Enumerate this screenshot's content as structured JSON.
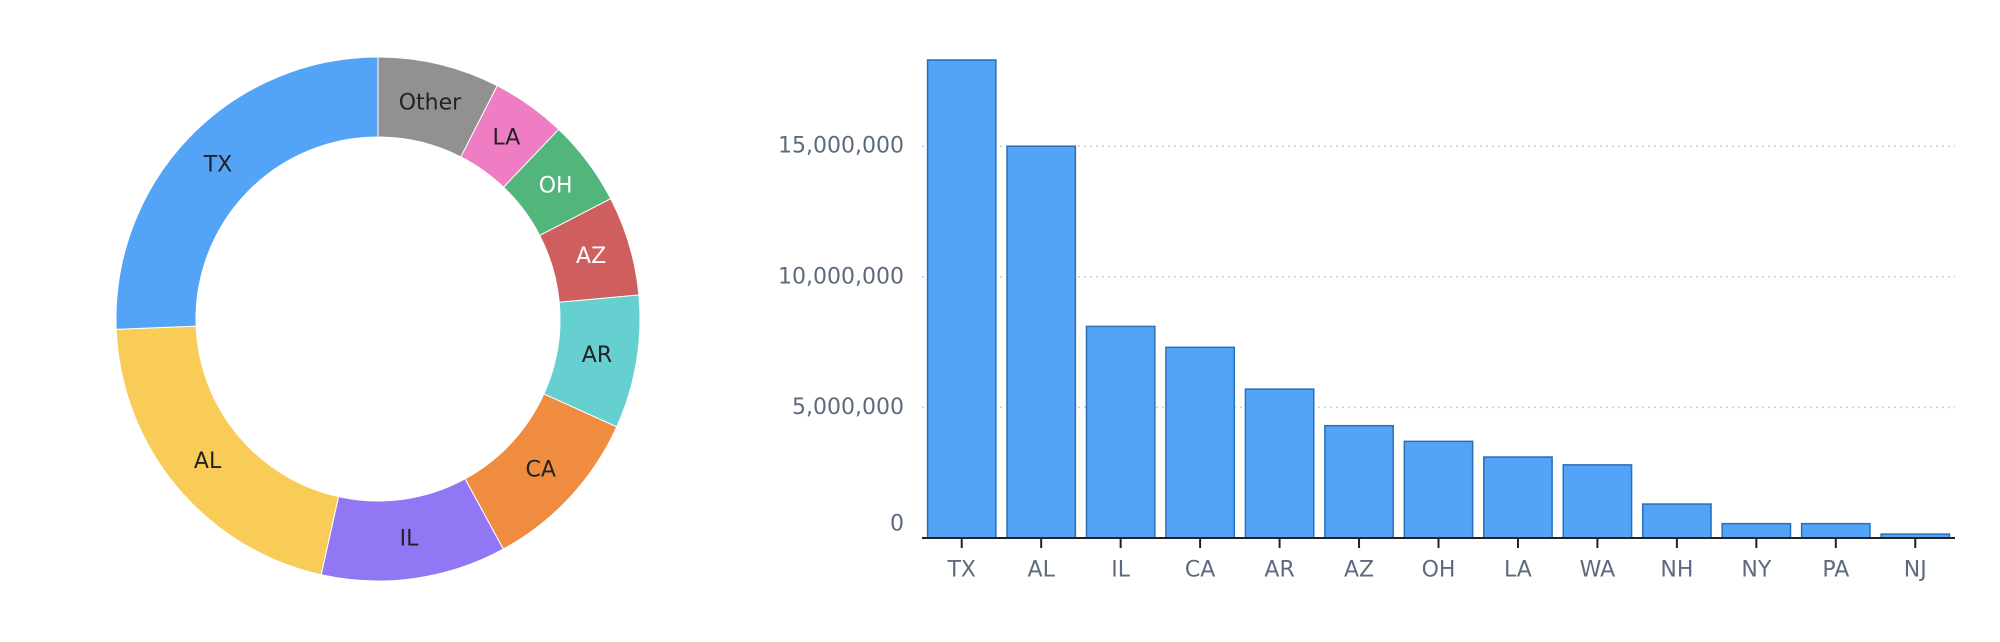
{
  "chart_data": [
    {
      "type": "pie",
      "variant": "donut",
      "slices": [
        {
          "label": "Other",
          "value": 2.7,
          "color": "#919191",
          "text_color": "#222222"
        },
        {
          "label": "LA",
          "value": 1.65,
          "color": "#ee7dc3",
          "text_color": "#222222"
        },
        {
          "label": "OH",
          "value": 1.9,
          "color": "#52b57c",
          "text_color": "#ffffff"
        },
        {
          "label": "AZ",
          "value": 2.2,
          "color": "#cf5e5e",
          "text_color": "#ffffff"
        },
        {
          "label": "AR",
          "value": 2.95,
          "color": "#66d0d0",
          "text_color": "#222222"
        },
        {
          "label": "CA",
          "value": 3.7,
          "color": "#ef8c3f",
          "text_color": "#222222"
        },
        {
          "label": "IL",
          "value": 4.1,
          "color": "#9177f3",
          "text_color": "#222222"
        },
        {
          "label": "AL",
          "value": 7.5,
          "color": "#f8cc57",
          "text_color": "#222222"
        },
        {
          "label": "TX",
          "value": 9.2,
          "color": "#53a3f7",
          "text_color": "#222222"
        }
      ]
    },
    {
      "type": "bar",
      "categories": [
        "TX",
        "AL",
        "IL",
        "CA",
        "AR",
        "AZ",
        "OH",
        "LA",
        "WA",
        "NH",
        "NY",
        "PA",
        "NJ"
      ],
      "values": [
        18300000,
        15000000,
        8100000,
        7300000,
        5700000,
        4300000,
        3700000,
        3100000,
        2800000,
        1300000,
        550000,
        550000,
        150000
      ],
      "ylim": [
        0,
        18300000
      ],
      "yticks": [
        0,
        5000000,
        10000000,
        15000000
      ],
      "ytick_labels": [
        "0",
        "5,000,000",
        "10,000,000",
        "15,000,000"
      ],
      "grid": true,
      "bar_color": "#53a3f7",
      "bar_edge_color": "#2a6fb8",
      "tick_label_color": "#5d6b7e"
    }
  ]
}
